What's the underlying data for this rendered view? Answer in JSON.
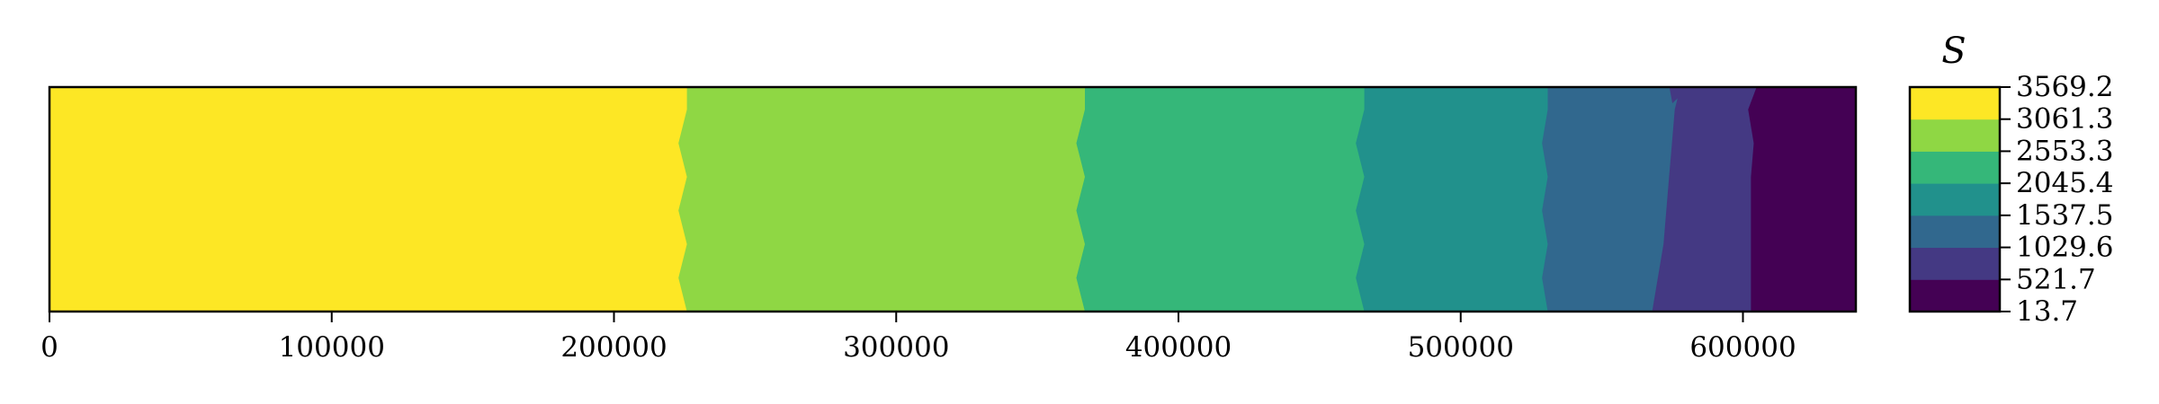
{
  "chart_data": {
    "type": "contourf",
    "xlim": [
      0,
      640000
    ],
    "ylim": [
      0,
      1
    ],
    "x_ticks": [
      "0",
      "100000",
      "200000",
      "300000",
      "400000",
      "500000",
      "600000"
    ],
    "x_tick_values": [
      0,
      100000,
      200000,
      300000,
      400000,
      500000,
      600000
    ],
    "colorbar": {
      "title": "S",
      "levels": [
        13.7,
        521.7,
        1029.6,
        1537.5,
        2045.4,
        2553.3,
        3061.3,
        3569.2
      ],
      "level_labels": [
        "13.7",
        "521.7",
        "1029.6",
        "1537.5",
        "2045.4",
        "2553.3",
        "3061.3",
        "3569.2"
      ],
      "colors": [
        "#440154",
        "#443983",
        "#31688e",
        "#21918c",
        "#35b779",
        "#8fd744",
        "#fde725"
      ]
    },
    "contour_boundaries_note": "x position (data units) of each level boundary at sampled y fractions 0..1",
    "y_samples": [
      0,
      0.1,
      0.25,
      0.4,
      0.55,
      0.7,
      0.85,
      1
    ],
    "boundaries": [
      {
        "between": "2553.3-3061.3 / 3061.3-3569.2",
        "level": 3061.3,
        "x": [
          226000,
          226000,
          223000,
          226000,
          223000,
          226000,
          223000,
          226000
        ]
      },
      {
        "between": "2045.4-2553.3 / 2553.3-3061.3",
        "level": 2553.3,
        "x": [
          367000,
          367000,
          364000,
          367000,
          364000,
          367000,
          364000,
          367000
        ]
      },
      {
        "between": "1537.5-2045.4 / 2045.4-2553.3",
        "level": 2045.4,
        "x": [
          466000,
          466000,
          463000,
          466000,
          463000,
          466000,
          463000,
          466000
        ]
      },
      {
        "between": "1029.6-1537.5 / 1537.5-2045.4",
        "level": 1537.5,
        "x": [
          531000,
          531000,
          529000,
          531000,
          529000,
          531000,
          529000,
          531000
        ]
      },
      {
        "between": "521.7-1029.6 / 1029.6-1537.5",
        "level": 1029.6,
        "x": [
          578000,
          576000,
          575000,
          574000,
          573000,
          572000,
          570000,
          568000
        ]
      },
      {
        "between": "13.7-521.7 / 521.7-1029.6",
        "level": 521.7,
        "x": [
          605000,
          602000,
          604000,
          603000,
          603000,
          603000,
          603000,
          603000
        ]
      }
    ]
  }
}
